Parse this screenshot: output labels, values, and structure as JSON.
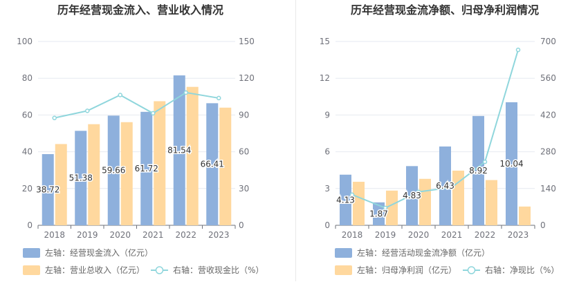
{
  "chart_data": [
    {
      "type": "bar",
      "title": "历年经营现金流入、营业收入情况",
      "categories": [
        "2018",
        "2019",
        "2020",
        "2021",
        "2022",
        "2023"
      ],
      "left_axis": {
        "ticks": [
          "0",
          "20",
          "40",
          "60",
          "80",
          "100"
        ],
        "ylim": [
          0,
          100
        ]
      },
      "right_axis": {
        "ticks": [
          "0",
          "30",
          "60",
          "90",
          "120",
          "150"
        ],
        "ylim": [
          0,
          150
        ]
      },
      "series": [
        {
          "name": "左轴：经营现金流入（亿元）",
          "kind": "bar",
          "axis": "left",
          "color": "#8eb0dc",
          "values": [
            38.72,
            51.38,
            59.66,
            61.72,
            81.54,
            66.41
          ],
          "labels": [
            "38.72",
            "51.38",
            "59.66",
            "61.72",
            "81.54",
            "66.41"
          ]
        },
        {
          "name": "左轴：营业总收入（亿元）",
          "kind": "bar",
          "axis": "left",
          "color": "#ffd89e",
          "values": [
            44.2,
            55.0,
            56.1,
            67.5,
            75.3,
            64.0
          ]
        },
        {
          "name": "右轴：营收现金比（%）",
          "kind": "line",
          "axis": "right",
          "color": "#8fd6dc",
          "values": [
            87.6,
            93.4,
            106.3,
            91.4,
            108.3,
            103.8
          ]
        }
      ]
    },
    {
      "type": "bar",
      "title": "历年经营现金流净额、归母净利润情况",
      "categories": [
        "2018",
        "2019",
        "2020",
        "2021",
        "2022",
        "2023"
      ],
      "left_axis": {
        "ticks": [
          "0",
          "3",
          "6",
          "9",
          "12",
          "15"
        ],
        "ylim": [
          0,
          15
        ]
      },
      "right_axis": {
        "ticks": [
          "0",
          "140",
          "280",
          "420",
          "560",
          "700"
        ],
        "ylim": [
          0,
          700
        ]
      },
      "series": [
        {
          "name": "左轴：经营活动现金流净额（亿元）",
          "kind": "bar",
          "axis": "left",
          "color": "#8eb0dc",
          "values": [
            4.13,
            1.87,
            4.83,
            6.43,
            8.92,
            10.04
          ],
          "labels": [
            "4.13",
            "1.87",
            "4.83",
            "6.43",
            "8.92",
            "10.04"
          ]
        },
        {
          "name": "左轴：归母净利润（亿元）",
          "kind": "bar",
          "axis": "left",
          "color": "#ffd89e",
          "values": [
            3.55,
            2.83,
            3.79,
            4.46,
            3.69,
            1.53
          ]
        },
        {
          "name": "右轴：净现比（%）",
          "kind": "line",
          "axis": "right",
          "color": "#8fd6dc",
          "values": [
            116.5,
            66.1,
            127.4,
            144.2,
            241.7,
            668.0
          ]
        }
      ]
    }
  ]
}
